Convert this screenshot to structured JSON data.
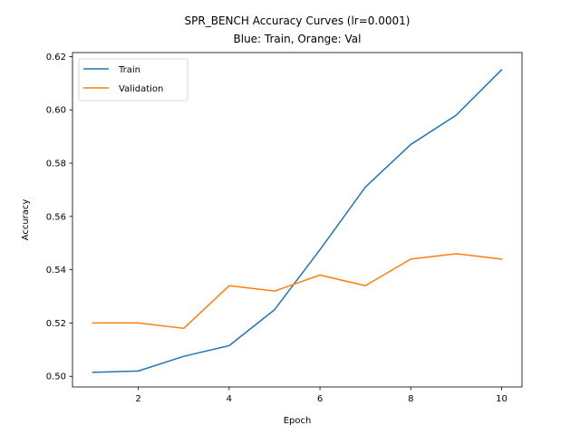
{
  "chart_data": {
    "type": "line",
    "title_line1": "SPR_BENCH Accuracy Curves (lr=0.0001)",
    "title_line2": "Blue: Train, Orange: Val",
    "xlabel": "Epoch",
    "ylabel": "Accuracy",
    "x": [
      1,
      2,
      3,
      4,
      5,
      6,
      7,
      8,
      9,
      10
    ],
    "xlim": [
      0.55,
      10.45
    ],
    "ylim": [
      0.496,
      0.6215
    ],
    "xticks": [
      2,
      4,
      6,
      8,
      10
    ],
    "yticks": [
      0.5,
      0.52,
      0.54,
      0.56,
      0.58,
      0.6,
      0.62
    ],
    "grid": false,
    "legend_position": "top-left",
    "series": [
      {
        "name": "Train",
        "color": "#1f77b4",
        "values": [
          0.5015,
          0.502,
          0.5075,
          0.5115,
          0.525,
          0.5475,
          0.571,
          0.587,
          0.598,
          0.615
        ]
      },
      {
        "name": "Validation",
        "color": "#ff7f0e",
        "values": [
          0.52,
          0.52,
          0.518,
          0.534,
          0.532,
          0.538,
          0.534,
          0.544,
          0.546,
          0.544
        ]
      }
    ]
  }
}
